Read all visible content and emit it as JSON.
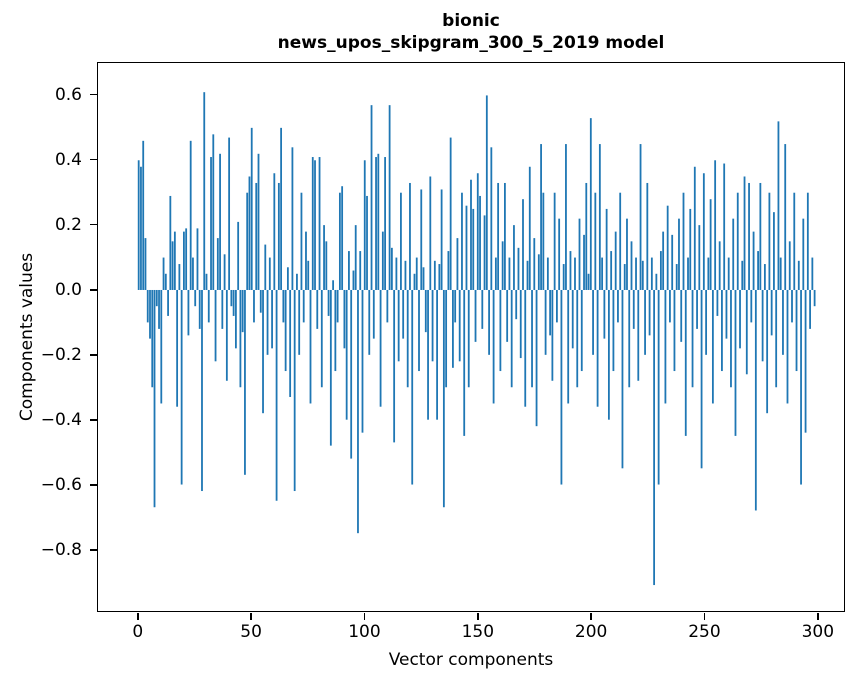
{
  "chart_data": {
    "type": "bar",
    "title_line1": "bionic",
    "title_line2": "news_upos_skipgram_300_5_2019 model",
    "xlabel": "Vector components",
    "ylabel": "Components values",
    "grid": false,
    "legend": null,
    "bar_color": "#1f77b4",
    "bar_width": 0.8,
    "x_start": 0,
    "x_step": 1,
    "xlim": [
      -18,
      312
    ],
    "ylim": [
      -0.99,
      0.7
    ],
    "xticks": {
      "values": [
        0,
        50,
        100,
        150,
        200,
        250,
        300
      ],
      "labels": [
        "0",
        "50",
        "100",
        "150",
        "200",
        "250",
        "300"
      ]
    },
    "yticks": {
      "values": [
        0.6,
        0.4,
        0.2,
        0.0,
        -0.2,
        -0.4,
        -0.6,
        -0.8
      ],
      "labels": [
        "0.6",
        "0.4",
        "0.2",
        "0.0",
        "−0.2",
        "−0.4",
        "−0.6",
        "−0.8"
      ]
    },
    "values": [
      0.4,
      0.38,
      0.46,
      0.16,
      -0.1,
      -0.15,
      -0.3,
      -0.67,
      -0.05,
      -0.12,
      -0.35,
      0.1,
      0.05,
      -0.08,
      0.29,
      0.15,
      0.18,
      -0.36,
      0.08,
      -0.6,
      0.18,
      0.19,
      -0.14,
      0.46,
      0.1,
      -0.05,
      0.19,
      -0.12,
      -0.62,
      0.61,
      0.05,
      -0.1,
      0.41,
      0.48,
      -0.22,
      0.16,
      0.42,
      -0.12,
      0.11,
      -0.28,
      0.47,
      -0.05,
      -0.08,
      -0.18,
      0.21,
      -0.3,
      -0.13,
      -0.57,
      0.3,
      0.35,
      0.5,
      -0.1,
      0.33,
      0.42,
      -0.07,
      -0.38,
      0.14,
      -0.2,
      0.1,
      -0.18,
      0.36,
      -0.65,
      0.33,
      0.5,
      -0.1,
      -0.25,
      0.07,
      -0.33,
      0.44,
      -0.62,
      0.05,
      -0.2,
      0.3,
      -0.1,
      0.18,
      0.09,
      -0.35,
      0.41,
      0.4,
      -0.12,
      0.41,
      -0.3,
      0.2,
      0.15,
      -0.08,
      -0.48,
      0.03,
      -0.25,
      -0.1,
      0.3,
      0.32,
      -0.18,
      -0.4,
      0.12,
      -0.52,
      0.06,
      0.2,
      -0.75,
      0.12,
      -0.44,
      0.4,
      0.29,
      -0.2,
      0.57,
      -0.15,
      0.41,
      0.42,
      -0.36,
      0.18,
      0.41,
      -0.1,
      0.57,
      0.13,
      -0.47,
      0.1,
      -0.22,
      0.3,
      -0.15,
      0.09,
      -0.3,
      0.33,
      -0.6,
      0.05,
      0.1,
      -0.25,
      0.31,
      0.07,
      -0.13,
      -0.4,
      0.35,
      -0.22,
      0.09,
      -0.4,
      0.08,
      0.31,
      -0.67,
      -0.3,
      0.12,
      0.47,
      -0.24,
      -0.1,
      0.16,
      -0.22,
      0.3,
      -0.45,
      0.26,
      -0.3,
      0.34,
      0.25,
      -0.16,
      0.36,
      0.29,
      -0.12,
      0.23,
      0.6,
      -0.2,
      0.44,
      -0.35,
      0.1,
      0.33,
      -0.25,
      0.15,
      0.33,
      -0.16,
      0.1,
      -0.3,
      0.2,
      -0.09,
      0.13,
      -0.21,
      0.28,
      -0.36,
      0.09,
      0.38,
      -0.3,
      0.16,
      -0.42,
      0.11,
      0.45,
      0.3,
      -0.2,
      0.1,
      -0.14,
      -0.28,
      0.3,
      -0.1,
      0.22,
      -0.6,
      0.08,
      0.45,
      -0.35,
      0.12,
      -0.18,
      0.1,
      -0.3,
      0.22,
      -0.25,
      0.17,
      0.33,
      0.05,
      0.53,
      -0.2,
      0.3,
      -0.36,
      0.45,
      0.1,
      -0.15,
      0.25,
      -0.4,
      0.12,
      -0.25,
      0.18,
      -0.1,
      0.3,
      -0.55,
      0.08,
      0.22,
      -0.3,
      0.15,
      -0.12,
      0.1,
      -0.28,
      0.45,
      0.09,
      -0.2,
      0.33,
      -0.14,
      0.1,
      -0.91,
      0.05,
      -0.6,
      0.12,
      0.18,
      -0.35,
      0.26,
      -0.1,
      0.17,
      -0.25,
      0.08,
      0.22,
      -0.16,
      0.3,
      -0.45,
      0.1,
      0.25,
      -0.3,
      0.38,
      -0.12,
      0.2,
      -0.55,
      0.36,
      -0.2,
      0.1,
      0.28,
      -0.35,
      0.4,
      -0.08,
      0.15,
      -0.25,
      0.39,
      -0.15,
      0.1,
      -0.3,
      0.22,
      -0.45,
      0.3,
      -0.18,
      0.09,
      0.35,
      -0.26,
      0.33,
      -0.1,
      0.18,
      -0.68,
      0.12,
      0.33,
      -0.22,
      0.08,
      -0.38,
      0.3,
      -0.14,
      0.24,
      -0.3,
      0.52,
      0.1,
      -0.2,
      0.45,
      -0.35,
      0.15,
      -0.1,
      0.3,
      -0.25,
      0.09,
      -0.6,
      0.22,
      -0.44,
      0.3,
      -0.12,
      0.1,
      -0.05
    ]
  }
}
